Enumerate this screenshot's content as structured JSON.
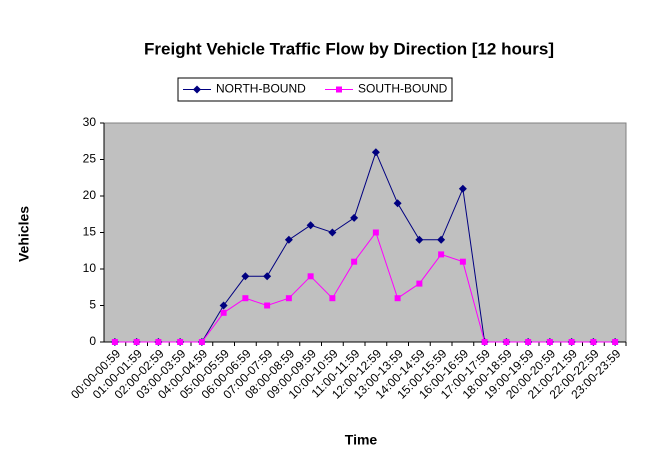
{
  "chart_data": {
    "type": "line",
    "title": "Freight Vehicle Traffic Flow by Direction [12 hours]",
    "x_label": "Time",
    "y_label": "Vehicles",
    "categories": [
      "00:00-00:59",
      "01:00-01:59",
      "02:00-02:59",
      "03:00-03:59",
      "04:00-04:59",
      "05:00-05:59",
      "06:00-06:59",
      "07:00-07:59",
      "08:00-08:59",
      "09:00-09:59",
      "10:00-10:59",
      "11:00-11:59",
      "12:00-12:59",
      "13:00-13:59",
      "14:00-14:59",
      "15:00-15:59",
      "16:00-16:59",
      "17:00-17:59",
      "18:00-18:59",
      "19:00-19:59",
      "20:00-20:59",
      "21:00-21:59",
      "22:00-22:59",
      "23:00-23:59"
    ],
    "series": [
      {
        "name": "NORTH-BOUND",
        "color": "#000080",
        "marker": "diamond",
        "values": [
          0,
          0,
          0,
          0,
          0,
          5,
          9,
          9,
          14,
          16,
          15,
          17,
          26,
          19,
          14,
          14,
          21,
          0,
          0,
          0,
          0,
          0,
          0,
          0
        ]
      },
      {
        "name": "SOUTH-BOUND",
        "color": "#ff00ff",
        "marker": "square",
        "values": [
          0,
          0,
          0,
          0,
          0,
          4,
          6,
          5,
          6,
          9,
          6,
          11,
          15,
          6,
          8,
          12,
          11,
          0,
          0,
          0,
          0,
          0,
          0,
          0
        ]
      }
    ],
    "ylim": [
      0,
      30
    ],
    "yticks": [
      0,
      5,
      10,
      15,
      20,
      25,
      30
    ],
    "grid": false,
    "legend": "top"
  }
}
